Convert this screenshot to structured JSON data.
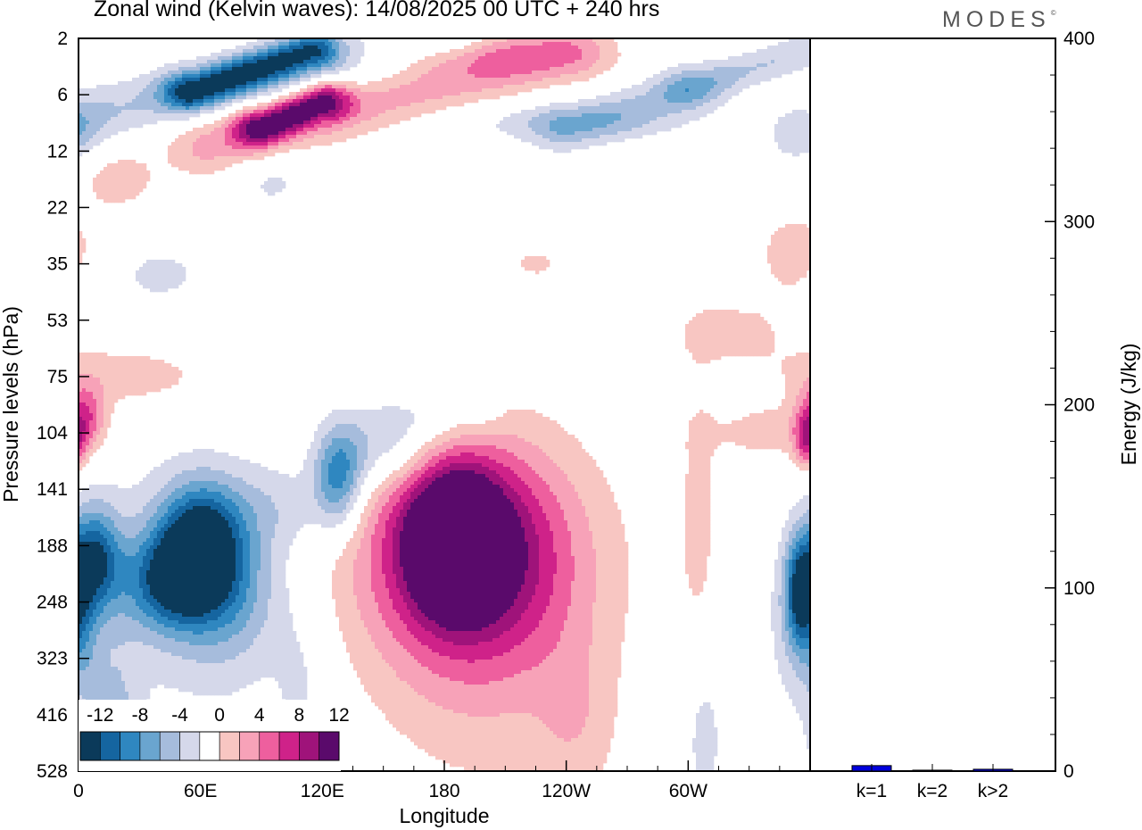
{
  "title": "Zonal wind (Kelvin waves):  14/08/2025  00 UTC  + 240 hrs",
  "logo": {
    "text": "MODES",
    "mark": "©"
  },
  "colors": {
    "neg": [
      "#0b3a5a",
      "#1565a0",
      "#2f87c0",
      "#6aa5cf",
      "#a6bcdc",
      "#d5d8ea"
    ],
    "zero": "#ffffff",
    "pos": [
      "#f8c6c2",
      "#f7a2b8",
      "#ee5f9e",
      "#cf2289",
      "#9f137a",
      "#5a0a6b"
    ],
    "bar": "#0000dd"
  },
  "chart_data": [
    {
      "type": "heatmap",
      "title": "Zonal wind (Kelvin waves):  14/08/2025  00 UTC  + 240 hrs",
      "xlabel": "Longitude",
      "ylabel": "Pressure levels (hPa)",
      "x_ticks": [
        {
          "lon": 0,
          "label": "0"
        },
        {
          "lon": 60,
          "label": "60E"
        },
        {
          "lon": 120,
          "label": "120E"
        },
        {
          "lon": 180,
          "label": "180"
        },
        {
          "lon": 240,
          "label": "120W"
        },
        {
          "lon": 300,
          "label": "60W"
        }
      ],
      "xlim": [
        0,
        360
      ],
      "y_levels": [
        "2",
        "6",
        "12",
        "22",
        "35",
        "53",
        "75",
        "104",
        "141",
        "188",
        "248",
        "323",
        "416",
        "528"
      ],
      "colorbar": {
        "labels": [
          "-12",
          "-8",
          "-4",
          "0",
          "4",
          "8",
          "12"
        ],
        "levels": [
          -14,
          -12,
          -10,
          -8,
          -6,
          -4,
          -2,
          2,
          4,
          6,
          8,
          10,
          12,
          14
        ]
      },
      "blobs": [
        {
          "lon": 8,
          "lvl": 9.2,
          "rx": 12,
          "ry": 0.9,
          "v": -9
        },
        {
          "lon": 3,
          "lvl": 10.6,
          "rx": 8,
          "ry": 1.2,
          "v": -4
        },
        {
          "lon": 18,
          "lvl": 12.2,
          "rx": 10,
          "ry": 1.4,
          "v": -3
        },
        {
          "lon": 60,
          "lvl": 8.9,
          "rx": 20,
          "ry": 1.0,
          "v": -12
        },
        {
          "lon": 48,
          "lvl": 9.6,
          "rx": 20,
          "ry": 0.8,
          "v": -8
        },
        {
          "lon": 75,
          "lvl": 9.8,
          "rx": 25,
          "ry": 1.7,
          "v": -4
        },
        {
          "lon": 40,
          "lvl": 9.7,
          "rx": 45,
          "ry": 2.2,
          "v": -3
        },
        {
          "lon": 100,
          "lvl": 8.3,
          "rx": 25,
          "ry": 0.8,
          "v": -3
        },
        {
          "lon": 128,
          "lvl": 7.8,
          "rx": 12,
          "ry": 0.9,
          "v": -9
        },
        {
          "lon": 150,
          "lvl": 7.3,
          "rx": 25,
          "ry": 0.7,
          "v": -5
        },
        {
          "lon": 170,
          "lvl": 6.7,
          "rx": 30,
          "ry": 0.5,
          "v": -3
        },
        {
          "lon": 198,
          "lvl": 6.3,
          "rx": 10,
          "ry": 0.5,
          "v": -2.5
        },
        {
          "lon": 355,
          "lvl": 9.8,
          "rx": 7,
          "ry": 0.9,
          "v": -10
        },
        {
          "lon": 352,
          "lvl": 10.4,
          "rx": 12,
          "ry": 1.4,
          "v": -3
        },
        {
          "lon": 308,
          "lvl": 12.4,
          "rx": 10,
          "ry": 1.5,
          "v": -3
        },
        {
          "lon": 110,
          "lvl": 11.5,
          "rx": 15,
          "ry": 1.5,
          "v": -2.5
        },
        {
          "lon": 15,
          "lvl": 12.8,
          "rx": 18,
          "ry": 1.2,
          "v": -3
        },
        {
          "lon": 185,
          "lvl": 8.9,
          "rx": 20,
          "ry": 1.1,
          "v": 13
        },
        {
          "lon": 190,
          "lvl": 9.0,
          "rx": 42,
          "ry": 1.7,
          "v": 9
        },
        {
          "lon": 195,
          "lvl": 9.3,
          "rx": 65,
          "ry": 2.3,
          "v": 5
        },
        {
          "lon": 200,
          "lvl": 10.6,
          "rx": 55,
          "ry": 3.0,
          "v": 3
        },
        {
          "lon": 245,
          "lvl": 12.2,
          "rx": 20,
          "ry": 1.5,
          "v": 2.5
        },
        {
          "lon": 3,
          "lvl": 6.7,
          "rx": 10,
          "ry": 0.6,
          "v": 7
        },
        {
          "lon": 25,
          "lvl": 6.0,
          "rx": 45,
          "ry": 0.6,
          "v": 3
        },
        {
          "lon": 340,
          "lvl": 7.0,
          "rx": 30,
          "ry": 0.5,
          "v": 3
        },
        {
          "lon": 358,
          "lvl": 7.2,
          "rx": 6,
          "ry": 0.5,
          "v": 6
        },
        {
          "lon": 305,
          "lvl": 8.5,
          "rx": 10,
          "ry": 2.5,
          "v": 2.5
        },
        {
          "lon": 320,
          "lvl": 5.2,
          "rx": 35,
          "ry": 0.7,
          "v": 2.5
        },
        {
          "lon": 352,
          "lvl": 3.8,
          "rx": 20,
          "ry": 0.8,
          "v": 3
        },
        {
          "lon": 225,
          "lvl": 4.0,
          "rx": 14,
          "ry": 0.3,
          "v": 2.5
        },
        {
          "lon": 40,
          "lvl": 4.2,
          "rx": 28,
          "ry": 0.6,
          "v": -2.5
        },
        {
          "lon": 95,
          "lvl": 2.5,
          "rx": 18,
          "ry": 0.6,
          "v": -2.5
        },
        {
          "lon": 240,
          "lvl": 1.5,
          "rx": 60,
          "ry": 0.35,
          "v": -3
        },
        {
          "lon": 355,
          "lvl": 1.7,
          "rx": 15,
          "ry": 0.5,
          "v": -4
        },
        {
          "lon": 20,
          "lvl": 2.5,
          "rx": 20,
          "ry": 0.6,
          "v": 3
        },
        {
          "lon": 190,
          "lvl": 0.3,
          "rx": 60,
          "ry": 0.4,
          "v": 4
        }
      ],
      "streaks": [
        {
          "lon0": 55,
          "lvl0": 0.95,
          "lon1": 115,
          "lvl1": 0.2,
          "w": 0.35,
          "v": -11
        },
        {
          "lon0": 0,
          "lvl0": 1.4,
          "lon1": 180,
          "lvl1": 0.05,
          "w": 0.55,
          "v": -4
        },
        {
          "lon0": 90,
          "lvl0": 1.6,
          "lon1": 120,
          "lvl1": 1.1,
          "w": 0.35,
          "v": 11
        },
        {
          "lon0": 65,
          "lvl0": 1.9,
          "lon1": 240,
          "lvl1": 0.25,
          "w": 0.55,
          "v": 5
        },
        {
          "lon0": 240,
          "lvl0": 1.6,
          "lon1": 300,
          "lvl1": 0.9,
          "w": 0.45,
          "v": -4
        },
        {
          "lon0": 300,
          "lvl0": 0.9,
          "lon1": 360,
          "lvl1": 0.2,
          "w": 0.35,
          "v": -4
        },
        {
          "lon0": 0,
          "lvl0": 9.5,
          "lon1": 60,
          "lvl1": 9.9,
          "w": 0.9,
          "v": -2.5
        }
      ]
    },
    {
      "type": "bar",
      "categories": [
        "k=1",
        "k=2",
        "k>2"
      ],
      "values": [
        3,
        0.5,
        1
      ],
      "ylabel": "Energy (J/kg)",
      "ylim": [
        0,
        400
      ],
      "y_ticks": [
        0,
        100,
        200,
        300,
        400
      ]
    }
  ]
}
